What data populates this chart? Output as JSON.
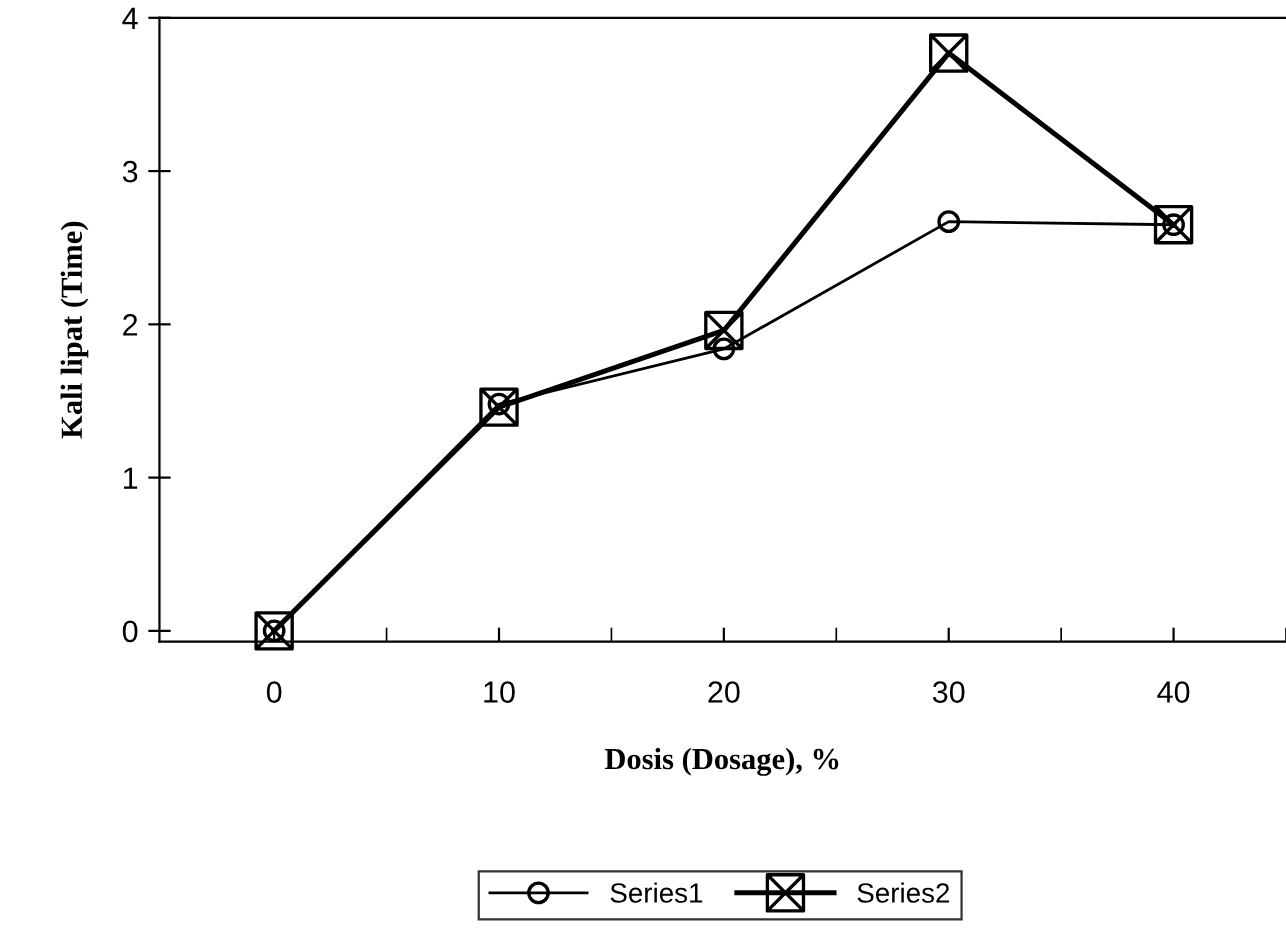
{
  "chart_data": {
    "type": "line",
    "xlabel": "Dosis (Dosage), %",
    "ylabel": "Kali lipat (Time)",
    "categories": [
      "0",
      "10",
      "20",
      "30",
      "40"
    ],
    "series": [
      {
        "name": "Series1",
        "color": "#000000",
        "marker": "circle",
        "values": [
          0,
          1.48,
          1.84,
          2.67,
          2.65
        ]
      },
      {
        "name": "Series2",
        "color": "#000000",
        "marker": "cross",
        "values": [
          0,
          1.46,
          1.96,
          3.77,
          2.65
        ]
      }
    ],
    "ylim": [
      -0.07,
      4
    ],
    "yticks": [
      0,
      1,
      2,
      3,
      4
    ],
    "grid": false,
    "legend": "bottom",
    "line_style": "solid"
  }
}
